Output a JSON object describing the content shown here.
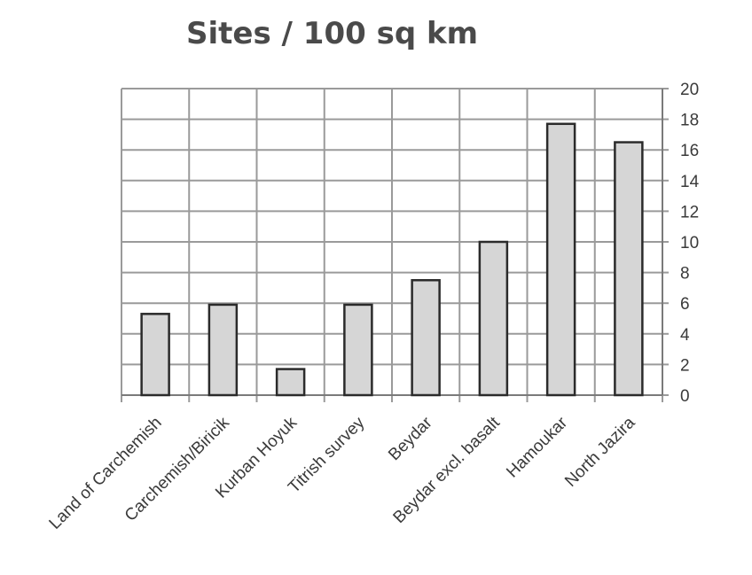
{
  "chart_data": {
    "type": "bar",
    "title": "Sites / 100 sq km",
    "categories": [
      "Land of Carchemish",
      "Carchemish/Biricik",
      "Kurban Hoyuk",
      "Titrish survey",
      "Beydar",
      "Beydar excl. basalt",
      "Hamoukar",
      "North Jazira"
    ],
    "values": [
      5.3,
      5.9,
      1.7,
      5.9,
      7.5,
      10.0,
      17.7,
      16.5
    ],
    "ylim": [
      0,
      20
    ],
    "yticks": [
      "0",
      "2",
      "4",
      "6",
      "8",
      "10",
      "12",
      "14",
      "16",
      "18",
      "20"
    ],
    "y_axis_side": "right",
    "grid": true,
    "colors": {
      "bar_fill": "#d6d6d6",
      "bar_stroke": "#2b2b2b",
      "grid": "#9a9a9a",
      "text": "#3a3a3a"
    }
  }
}
